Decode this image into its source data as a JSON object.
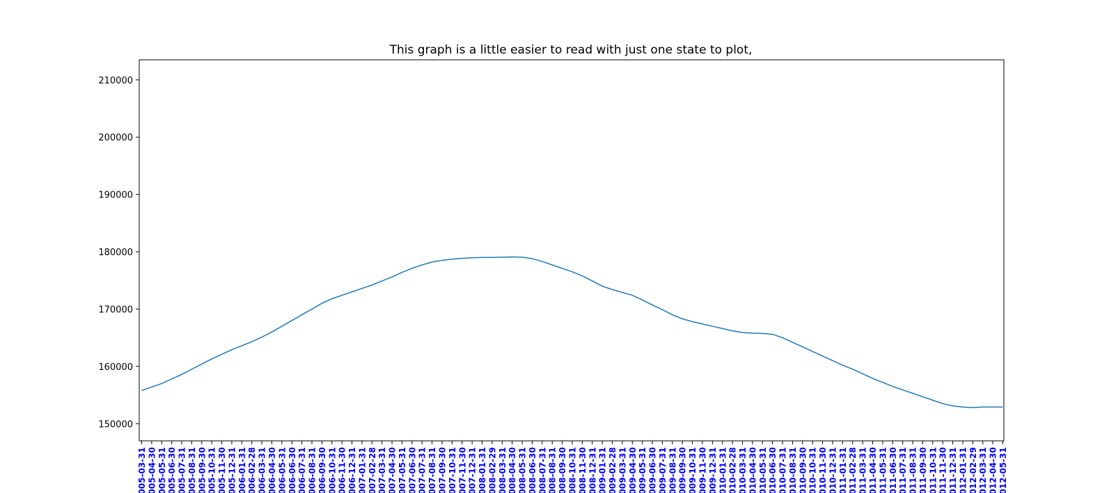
{
  "chart_data": {
    "type": "line",
    "title": "This graph is a little easier to read with just one state to plot,",
    "xlabel": "",
    "ylabel": "",
    "ylim": [
      147000,
      213500
    ],
    "yticks": [
      150000,
      160000,
      170000,
      180000,
      190000,
      200000,
      210000
    ],
    "grid": false,
    "tick_label_color": "#0000ff",
    "line_color": "#1f77b4",
    "categories": [
      "2005-03-31",
      "2005-04-30",
      "2005-05-31",
      "2005-06-30",
      "2005-07-31",
      "2005-08-31",
      "2005-09-30",
      "2005-10-31",
      "2005-11-30",
      "2005-12-31",
      "2006-01-31",
      "2006-02-28",
      "2006-03-31",
      "2006-04-30",
      "2006-05-31",
      "2006-06-30",
      "2006-07-31",
      "2006-08-31",
      "2006-09-30",
      "2006-10-31",
      "2006-11-30",
      "2006-12-31",
      "2007-01-31",
      "2007-02-28",
      "2007-03-31",
      "2007-04-30",
      "2007-05-31",
      "2007-06-30",
      "2007-07-31",
      "2007-08-31",
      "2007-09-30",
      "2007-10-31",
      "2007-11-30",
      "2007-12-31",
      "2008-01-31",
      "2008-02-29",
      "2008-03-31",
      "2008-04-30",
      "2008-05-31",
      "2008-06-30",
      "2008-07-31",
      "2008-08-31",
      "2008-09-30",
      "2008-10-31",
      "2008-11-30",
      "2008-12-31",
      "2009-01-31",
      "2009-02-28",
      "2009-03-31",
      "2009-04-30",
      "2009-05-31",
      "2009-06-30",
      "2009-07-31",
      "2009-08-31",
      "2009-09-30",
      "2009-10-31",
      "2009-11-30",
      "2009-12-31",
      "2010-01-31",
      "2010-02-28",
      "2010-03-31",
      "2010-04-30",
      "2010-05-31",
      "2010-06-30",
      "2010-07-31",
      "2010-08-31",
      "2010-09-30",
      "2010-10-31",
      "2010-11-30",
      "2010-12-31",
      "2011-01-31",
      "2011-02-28",
      "2011-03-31",
      "2011-04-30",
      "2011-05-31",
      "2011-06-30",
      "2011-07-31",
      "2011-08-31",
      "2011-09-30",
      "2011-10-31",
      "2011-11-30",
      "2011-12-31",
      "2012-01-31",
      "2012-02-29",
      "2012-03-31",
      "2012-04-30",
      "2012-05-31"
    ],
    "series": [
      {
        "values": [
          155800,
          156400,
          157000,
          157800,
          158600,
          159500,
          160400,
          161300,
          162100,
          162900,
          163600,
          164300,
          165100,
          166000,
          167000,
          168000,
          169000,
          170000,
          171000,
          171800,
          172400,
          173000,
          173600,
          174200,
          174900,
          175600,
          176400,
          177100,
          177700,
          178200,
          178500,
          178700,
          178850,
          178950,
          179000,
          179000,
          179050,
          179100,
          179050,
          178800,
          178300,
          177700,
          177100,
          176500,
          175800,
          174900,
          174000,
          173400,
          172900,
          172400,
          171600,
          170700,
          169900,
          169000,
          168300,
          167800,
          167400,
          167000,
          166600,
          166200,
          165900,
          165800,
          165750,
          165600,
          165000,
          164200,
          163400,
          162600,
          161800,
          161000,
          160200,
          159500,
          158700,
          157900,
          157200,
          156500,
          155900,
          155300,
          154700,
          154100,
          153500,
          153100,
          152900,
          152800,
          152900,
          152900,
          152900
        ]
      }
    ]
  }
}
